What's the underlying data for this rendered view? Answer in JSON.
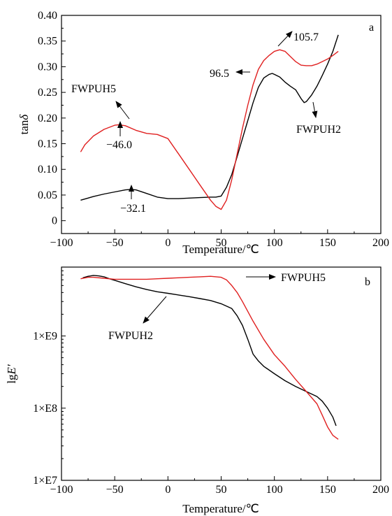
{
  "chart_data": [
    {
      "type": "line",
      "panel_label": "a",
      "xlabel": "Temperature/℃",
      "ylabel_prefix": "tan",
      "ylabel_symbol": "δ",
      "xlim": [
        -100,
        200
      ],
      "ylim": [
        -0.025,
        0.4
      ],
      "x_ticks": [
        -100,
        -50,
        0,
        50,
        100,
        150,
        200
      ],
      "x_tick_labels": [
        "−100",
        "−50",
        "0",
        "50",
        "100",
        "150",
        "200"
      ],
      "y_ticks": [
        0,
        0.05,
        0.1,
        0.15,
        0.2,
        0.25,
        0.3,
        0.35,
        0.4
      ],
      "y_tick_labels": [
        "0",
        "0.05",
        "0.10",
        "0.15",
        "0.20",
        "0.25",
        "0.30",
        "0.35",
        "0.40"
      ],
      "series": [
        {
          "name": "FWPUH2",
          "color": "#000000",
          "x": [
            -82,
            -70,
            -60,
            -50,
            -40,
            -35,
            -30,
            -20,
            -10,
            0,
            10,
            20,
            30,
            40,
            45,
            50,
            55,
            60,
            65,
            70,
            75,
            80,
            85,
            90,
            95,
            98,
            100,
            105,
            110,
            115,
            120,
            125,
            128,
            130,
            135,
            140,
            145,
            150,
            155,
            160
          ],
          "y": [
            0.04,
            0.047,
            0.052,
            0.056,
            0.06,
            0.061,
            0.06,
            0.053,
            0.046,
            0.043,
            0.043,
            0.044,
            0.045,
            0.046,
            0.046,
            0.048,
            0.065,
            0.09,
            0.125,
            0.16,
            0.195,
            0.23,
            0.26,
            0.278,
            0.285,
            0.287,
            0.285,
            0.28,
            0.27,
            0.262,
            0.255,
            0.238,
            0.23,
            0.232,
            0.245,
            0.262,
            0.283,
            0.305,
            0.33,
            0.362
          ]
        },
        {
          "name": "FWPUH5",
          "color": "#e02020",
          "x": [
            -82,
            -78,
            -70,
            -60,
            -50,
            -46,
            -40,
            -30,
            -20,
            -10,
            0,
            10,
            20,
            30,
            40,
            45,
            50,
            55,
            60,
            65,
            70,
            75,
            80,
            85,
            90,
            95,
            100,
            105,
            110,
            115,
            120,
            125,
            130,
            135,
            140,
            145,
            150,
            155,
            160
          ],
          "y": [
            0.134,
            0.148,
            0.165,
            0.178,
            0.186,
            0.187,
            0.185,
            0.176,
            0.17,
            0.168,
            0.16,
            0.13,
            0.1,
            0.07,
            0.04,
            0.028,
            0.022,
            0.04,
            0.08,
            0.13,
            0.18,
            0.225,
            0.265,
            0.295,
            0.312,
            0.322,
            0.33,
            0.333,
            0.33,
            0.32,
            0.31,
            0.303,
            0.302,
            0.302,
            0.305,
            0.31,
            0.315,
            0.322,
            0.33
          ]
        }
      ],
      "annotations": [
        {
          "text": "−46.0"
        },
        {
          "text": "−32.1"
        },
        {
          "text": "96.5"
        },
        {
          "text": "105.7"
        },
        {
          "text": "FWPUH5"
        },
        {
          "text": "FWPUH2"
        }
      ]
    },
    {
      "type": "line",
      "panel_label": "b",
      "log_y": true,
      "xlabel": "Temperature/℃",
      "ylabel_prefix": "lg",
      "ylabel_symbol": "E′",
      "xlim": [
        -100,
        200
      ],
      "ylim": [
        10000000,
        9000000000
      ],
      "x_ticks": [
        -100,
        -50,
        0,
        50,
        100,
        150,
        200
      ],
      "x_tick_labels": [
        "−100",
        "−50",
        "0",
        "50",
        "100",
        "150",
        "200"
      ],
      "y_ticks": [
        10000000,
        100000000,
        1000000000
      ],
      "y_tick_labels": [
        "1×E7",
        "1×E8",
        "1×E9"
      ],
      "series": [
        {
          "name": "FWPUH2",
          "color": "#000000",
          "x": [
            -80,
            -75,
            -70,
            -65,
            -60,
            -55,
            -50,
            -40,
            -30,
            -20,
            -10,
            0,
            10,
            20,
            30,
            40,
            50,
            60,
            65,
            70,
            75,
            80,
            85,
            90,
            100,
            110,
            120,
            130,
            140,
            145,
            150,
            155,
            158
          ],
          "y": [
            6400000000,
            6700000000,
            6900000000,
            6800000000,
            6600000000,
            6200000000,
            5900000000,
            5300000000,
            4800000000,
            4400000000,
            4100000000,
            3900000000,
            3700000000,
            3500000000,
            3300000000,
            3100000000,
            2800000000,
            2400000000,
            1900000000,
            1400000000,
            900000000,
            560000000,
            450000000,
            380000000,
            300000000,
            240000000,
            200000000,
            170000000,
            145000000,
            125000000,
            100000000,
            75000000,
            57000000
          ]
        },
        {
          "name": "FWPUH5",
          "color": "#e02020",
          "x": [
            -82,
            -75,
            -70,
            -60,
            -50,
            -40,
            -30,
            -20,
            -10,
            0,
            10,
            20,
            30,
            40,
            50,
            55,
            60,
            65,
            70,
            80,
            90,
            100,
            110,
            120,
            130,
            140,
            145,
            150,
            155,
            160
          ],
          "y": [
            6200000000,
            6500000000,
            6500000000,
            6300000000,
            6100000000,
            6100000000,
            6100000000,
            6100000000,
            6200000000,
            6300000000,
            6400000000,
            6500000000,
            6600000000,
            6700000000,
            6500000000,
            6000000000,
            5000000000,
            4000000000,
            3000000000,
            1600000000,
            900000000,
            550000000,
            380000000,
            250000000,
            170000000,
            115000000,
            80000000,
            55000000,
            42000000,
            37000000
          ]
        }
      ],
      "annotations": [
        {
          "text": "FWPUH5"
        },
        {
          "text": "FWPUH2"
        }
      ]
    }
  ]
}
